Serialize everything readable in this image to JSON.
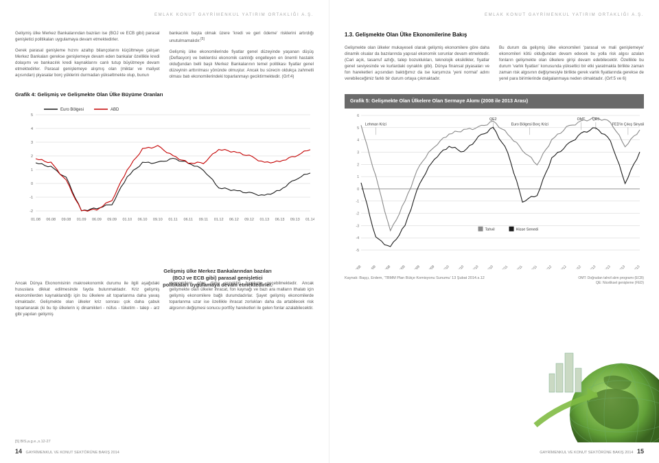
{
  "header": {
    "left": "EMLAK KONUT GAYRİMENKUL YATIRIM ORTAKLIĞI A.Ş.",
    "right": "EMLAK KONUT GAYRİMENKUL YATIRIM ORTAKLIĞI A.Ş."
  },
  "left": {
    "p1": "Gelişmiş ülke Merkez Bankalarından bazıları ise (BOJ ve ECB gibi) parasal genişletici politikaları uygulamaya devam etmektedirler.",
    "p2": "Gerek parasal genişleme hızını azaltıp bilançolarını küçültmeye çalışan Merkez Bankaları gerekse genişlemeye devam eden bankalar özellikle kredi dolaşımı ve bankacılık kredi kaynaklarını canlı tutup büyütmeye devam etmektedirler. Parasal genişlemeye alışmış olan (miktar ve maliyet açısından) piyasalar borç yüklerini durmadan yükseltmekte olup, bunun",
    "p3": "bankacılık başta olmak üzere 'kredi ve geri ödeme' risklerini artırdığı unutulmamalıdır.",
    "p4": "Gelişmiş ülke ekonomilerinde fiyatlar genel düzeyinde yaşanan düşüş (Deflasyon) ve beklentisi ekonomik canlılığı engelleyen en önemli hastalık olduğundan belli başlı Merkez Bankalarının temel politikası fiyatlar genel düzeyinin arttırılması yönünde olmuştur. Ancak bu sürecin oldukça zahmetli olması batı ekonomilerindeki toparlanmayı geciktirmektedir. (Grf:4)",
    "chart4_title": "Grafik 4:  Gelişmiş ve Gelişmekte Olan Ülke Büyüme Oranları",
    "legend": {
      "euro": "Euro Bölgesi",
      "abd": "ABD"
    },
    "callout": "Gelişmiş ülke Merkez Bankalarından bazıları (BOJ ve ECB gibi) parasal genişletici politikaları uygulamaya devam etmektedirler.",
    "p5": "Ancak Dünya Ekonomisinin makroekonomik durumu ile ilgili aşağıdaki hususlara dikkat edilmesinde fayda bulunmaktadır. Kriz gelişmiş ekonomilerden kaynaklandığı için bu ülkelere ait toparlanma daha yavaş olmaktadır. Gelişmekte olan ülkeler kriz sonrası çok daha çabuk toparlanarak (ki bu tip ülkelerin iç dinamikleri - nüfus - tüketim - talep - arz gibi yapıları gelişmiş",
    "p6": "ekonomilere göre daha esnektir) harekete geçebilmektedir. Ancak gelişmekte olan ülkeler ihracat, fon kaynağı ve bazı ara malların ithalatı için gelişmiş ekonomilere bağlı durumdadırlar. Şayet gelişmiş ekonomilerde toparlanma uzar ise özellikle ihracat zorlukları daha da artabilecek risk algısının değişmesi sonucu portföy hareketleri ile gelen fonlar azalabilecektir.",
    "footnote": "[5] BIS,a.g.e.,s.12-27",
    "footer": "GAYRİMENKUL VE KONUT SEKTÖRÜNE BAKIŞ 2014",
    "pn": "14"
  },
  "right": {
    "section_title": "1.3. Gelişmekte Olan Ülke Ekonomilerine Bakış",
    "p1": "Gelişmekte olan ülkeler mukayeseli olarak gelişmiş ekonomilere göre daha dinamik olsalar da bazılarında yapısal ekonomik sorunlar devam etmektedir. (Cari açık, tasarruf azlığı, talep bozuklukları, teknolojik eksiklikler, fiyatlar genel seviyesinde ve kurlardaki oynaklık gibi). Dünya finansal piyasaları ve fon hareketleri açısından baktığımız da ise karşımıza 'yeni normal' adını verebileceğimiz farklı bir durum ortaya çıkmaktadır.",
    "p2": "Bu durum da gelişmiş ülke ekonomileri 'parasal ve mali genişlemeye' ekonomileri kötü olduğundan devam edecek bu yolla risk algısı azalan fonların gelişmekte olan ülkelere girişi devam edebilecektir. Özellikle bu durum 'varlık fiyatları' konusunda yükseltici bir etki yaratmakla birlikte zaman zaman risk algısının değişmesiyle birlikte gerek varlık fiyatlarında gerekse de yerel para birimlerinde dalgalanmaya neden olmaktadır. (Grf:5 ve 6)",
    "chart5_title": "Grafik 5:  Gelişmekte Olan Ülkelere Olan Sermaye Akımı (2008 ile 2013 Arası)",
    "legend": {
      "tahvil": "Tahvil",
      "hisse": "Hisse Senedi"
    },
    "annotations": {
      "lehman": "Lehman Krizi",
      "qe2": "QE2",
      "euro": "Euro Bölgesi Borç Krizi",
      "omt": "OMT",
      "qe3": "QE3",
      "fed": "FED'in Çıkış Sinyali"
    },
    "source": "Kaynak: Başçı, Erdem, 'TBMM Plan Bütçe Komisyonu Sunumu' 13 Şubat 2014.s.12",
    "omt_note": "OMT: Doğrudan tahvil alım programı (ECB)\nQE: Niceliksel genişleme (FED)",
    "footer": "GAYRİMENKUL VE KONUT SEKTÖRÜNE BAKIŞ 2014",
    "pn": "15"
  },
  "chart4": {
    "ylim": [
      -2,
      5
    ],
    "yticks": [
      -2,
      -1,
      0,
      1,
      2,
      3,
      4,
      5
    ],
    "xlabels": [
      "01.08",
      "06.08",
      "09.08",
      "01.09",
      "06.09",
      "09.09",
      "01.10",
      "06.10",
      "09.10",
      "01.11",
      "06.11",
      "09.11",
      "01.12",
      "06.12",
      "09.12",
      "01.13",
      "06.13",
      "09.13",
      "01.14"
    ],
    "euro_color": "#1a1a1a",
    "abd_color": "#c40000",
    "euro": [
      1.5,
      1.2,
      0.4,
      -2.0,
      -1.8,
      -1.5,
      0.5,
      1.5,
      1.5,
      1.8,
      1.5,
      1.0,
      -0.3,
      -0.5,
      -0.7,
      -0.9,
      -0.5,
      0.3,
      0.8
    ],
    "abd": [
      1.8,
      1.5,
      0.2,
      -2.0,
      -1.9,
      -1.2,
      1.0,
      2.5,
      2.7,
      2.0,
      1.5,
      1.5,
      2.5,
      2.3,
      2.0,
      1.5,
      1.6,
      2.0,
      2.5
    ],
    "bg": "#ffffff",
    "grid": "#cfcfcf",
    "tick_font": 5.5
  },
  "chart5": {
    "ylim": [
      -5,
      6
    ],
    "yticks": [
      -5,
      -4,
      -3,
      -2,
      -1,
      0,
      1,
      2,
      3,
      4,
      5,
      6
    ],
    "xlabels": [
      "08/08",
      "11/08",
      "12/08",
      "03/09",
      "08/09",
      "09/09",
      "03/10",
      "06/10",
      "09/10",
      "12/10",
      "03/11",
      "09/11",
      "12/11",
      "05/12",
      "09/12",
      "11/12",
      "03/13",
      "06/13",
      "09/13",
      "12/13"
    ],
    "tahvil_color": "#8a8a8a",
    "hisse_color": "#1a1a1a",
    "tahvil": [
      5.2,
      1.0,
      -3.5,
      -1.0,
      2.0,
      3.5,
      4.5,
      4.8,
      5.0,
      5.5,
      4.5,
      3.2,
      2.0,
      4.0,
      5.0,
      5.5,
      5.8,
      5.5,
      3.5,
      4.8
    ],
    "hisse": [
      0.5,
      -4.0,
      -4.8,
      -3.0,
      0.5,
      2.5,
      3.5,
      3.0,
      4.2,
      5.0,
      3.0,
      -1.0,
      -0.5,
      2.5,
      3.5,
      4.5,
      5.0,
      4.0,
      0.5,
      3.0
    ],
    "bg": "#ffffff",
    "grid": "#cfcfcf",
    "tick_font": 5
  }
}
